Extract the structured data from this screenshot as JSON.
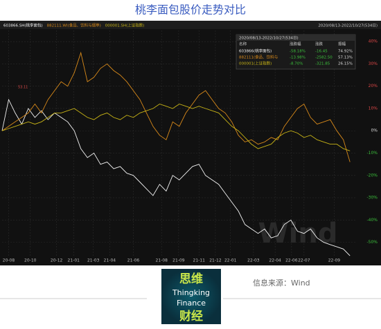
{
  "title": "桃李面包股价走势对比",
  "source": "信息来源：Wind",
  "logo": {
    "lines": [
      "思维",
      "Thingking",
      "Finance",
      "财经"
    ]
  },
  "watermark": "Wind",
  "stats_table": {
    "title": "2020/08/13-2022/10/27(534日)",
    "columns": [
      "名称",
      "涨跌幅",
      "涨跌",
      "振幅"
    ],
    "rows": [
      [
        "603866(桃李面包)",
        "-58.18%",
        "-16.45",
        "74.92%"
      ],
      [
        "882111(食品、饮料与",
        "-13.98%",
        "-2582.50",
        "57.13%"
      ],
      [
        "000001(上证指数)",
        "-8.70%",
        "-321.85",
        "26.15%"
      ]
    ]
  },
  "chart_data": {
    "type": "line",
    "range_label": "2020/08/13-2022/10/27(534日)",
    "annotation": "53.11",
    "x": [
      0,
      10,
      20,
      30,
      40,
      50,
      60,
      70,
      80,
      90,
      100,
      110,
      120,
      130,
      140,
      150,
      160,
      170,
      180,
      190,
      200,
      210,
      220,
      230,
      240,
      250,
      260,
      270,
      280,
      290,
      300,
      310,
      320,
      330,
      340,
      350,
      360,
      370,
      380,
      390,
      400,
      410,
      420,
      430,
      440,
      450,
      460,
      470,
      480,
      490,
      500,
      510,
      520,
      530
    ],
    "xlim": [
      0,
      533
    ],
    "xticks": [
      {
        "value": 10,
        "label": "20-08"
      },
      {
        "value": 43,
        "label": "20-10"
      },
      {
        "value": 83,
        "label": "20-12"
      },
      {
        "value": 109,
        "label": "21-01"
      },
      {
        "value": 139,
        "label": "21-03"
      },
      {
        "value": 164,
        "label": "21-04"
      },
      {
        "value": 200,
        "label": "21-06"
      },
      {
        "value": 243,
        "label": "21-08"
      },
      {
        "value": 269,
        "label": "21-09"
      },
      {
        "value": 300,
        "label": "21-11"
      },
      {
        "value": 325,
        "label": "21-12"
      },
      {
        "value": 348,
        "label": "22-01"
      },
      {
        "value": 383,
        "label": "22-03"
      },
      {
        "value": 416,
        "label": "22-04"
      },
      {
        "value": 441,
        "label": "22-06"
      },
      {
        "value": 460,
        "label": "22-07"
      },
      {
        "value": 506,
        "label": "22-09"
      }
    ],
    "ylim": [
      -56,
      45
    ],
    "yticks": [
      {
        "value": 40,
        "label": "40%"
      },
      {
        "value": 30,
        "label": "30%"
      },
      {
        "value": 20,
        "label": "20%"
      },
      {
        "value": 10,
        "label": "10%"
      },
      {
        "value": 0,
        "label": "0%"
      },
      {
        "value": -10,
        "label": "-10%"
      },
      {
        "value": -20,
        "label": "-20%"
      },
      {
        "value": -30,
        "label": "-30%"
      },
      {
        "value": -40,
        "label": "-40%"
      },
      {
        "value": -50,
        "label": "-50%"
      }
    ],
    "grid": true,
    "series": [
      {
        "name": "603866.SH(桃李面包)",
        "color": "#f2f2f2",
        "values": [
          0,
          14,
          8,
          3,
          10,
          6,
          9,
          5,
          8,
          6,
          4,
          0,
          -8,
          -12,
          -10,
          -15,
          -14,
          -17,
          -16,
          -19,
          -20,
          -23,
          -26,
          -29,
          -24,
          -27,
          -20,
          -22,
          -19,
          -16,
          -15,
          -20,
          -22,
          -24,
          -28,
          -32,
          -36,
          -42,
          -44,
          -46,
          -44,
          -48,
          -47,
          -42,
          -40,
          -45,
          -46,
          -44,
          -48,
          -50,
          -51,
          -52,
          -53,
          -56
        ]
      },
      {
        "name": "882111.WI(食品、饮料与烟草)",
        "color": "#d98a1a",
        "values": [
          0,
          2,
          4,
          6,
          8,
          12,
          8,
          14,
          18,
          22,
          20,
          26,
          35,
          22,
          24,
          28,
          30,
          27,
          25,
          22,
          18,
          14,
          8,
          2,
          -2,
          -4,
          4,
          2,
          8,
          12,
          16,
          18,
          14,
          10,
          8,
          4,
          -2,
          -5,
          -4,
          -6,
          -5,
          -3,
          -4,
          2,
          6,
          10,
          12,
          6,
          3,
          4,
          5,
          0,
          -4,
          -14
        ]
      },
      {
        "name": "000001.SH(上证指数)",
        "color": "#c8b416",
        "values": [
          0,
          1,
          2,
          3,
          4,
          3,
          4,
          6,
          8,
          8,
          9,
          10,
          8,
          6,
          5,
          7,
          8,
          6,
          5,
          7,
          6,
          8,
          9,
          10,
          12,
          11,
          10,
          12,
          11,
          10,
          11,
          10,
          9,
          8,
          5,
          2,
          0,
          -3,
          -6,
          -8,
          -7,
          -6,
          -3,
          -1,
          0,
          -1,
          -3,
          -2,
          -4,
          -5,
          -6,
          -6,
          -8,
          -9
        ]
      }
    ]
  }
}
